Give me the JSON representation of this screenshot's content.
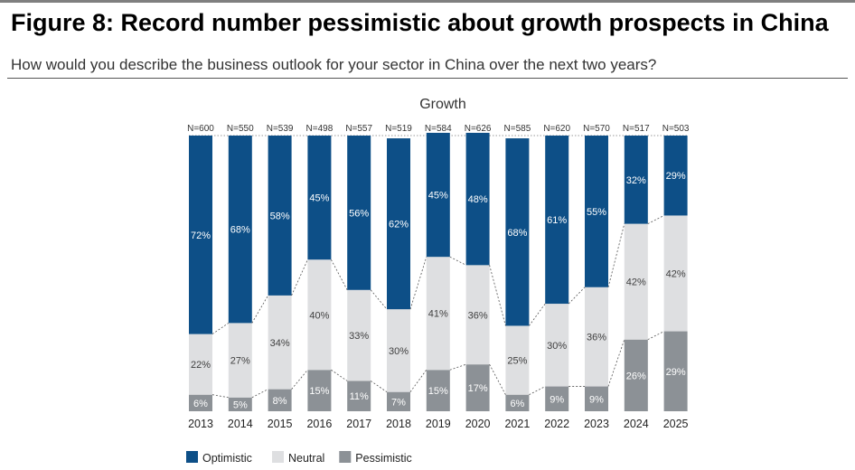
{
  "figure": {
    "title": "Figure 8: Record number pessimistic about growth prospects in China",
    "subtitle": "How would you describe the business outlook for your sector in China over the next two years?"
  },
  "chart_data": {
    "type": "bar",
    "stacked": true,
    "percent_stacked": true,
    "title": "Growth",
    "categories": [
      "2013",
      "2014",
      "2015",
      "2016",
      "2017",
      "2018",
      "2019",
      "2020",
      "2021",
      "2022",
      "2023",
      "2024",
      "2025"
    ],
    "sample_sizes": [
      "N=600",
      "N=550",
      "N=539",
      "N=498",
      "N=557",
      "N=519",
      "N=584",
      "N=626",
      "N=585",
      "N=620",
      "N=570",
      "N=517",
      "N=503"
    ],
    "series": [
      {
        "name": "Pessimistic",
        "color": "#8c9196",
        "label_color": "#ffffff",
        "values": [
          6,
          5,
          8,
          15,
          11,
          7,
          15,
          17,
          6,
          9,
          9,
          26,
          29
        ]
      },
      {
        "name": "Neutral",
        "color": "#dedfe1",
        "label_color": "#404040",
        "values": [
          22,
          27,
          34,
          40,
          33,
          30,
          41,
          36,
          25,
          30,
          36,
          42,
          42
        ]
      },
      {
        "name": "Optimistic",
        "color": "#0d4f87",
        "label_color": "#ffffff",
        "values": [
          72,
          68,
          58,
          45,
          56,
          62,
          45,
          48,
          68,
          61,
          55,
          32,
          29
        ]
      }
    ],
    "legend_order": [
      "Optimistic",
      "Neutral",
      "Pessimistic"
    ],
    "legend_position": "bottom-left",
    "ylim": [
      0,
      100
    ],
    "connector_lines": true
  }
}
